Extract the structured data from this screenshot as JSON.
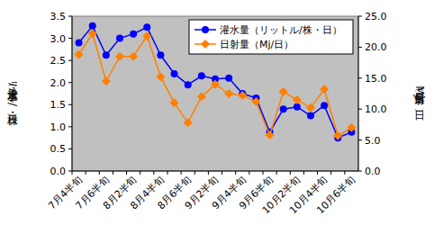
{
  "chart_data": {
    "type": "line",
    "y_label": "灌水量（ﾘｯﾄﾙ/株・日）",
    "y2_label": "日射量（Mj/日）",
    "categories": [
      "7月4半旬",
      null,
      "7月6半旬",
      null,
      "8月2半旬",
      null,
      "8月4半旬",
      null,
      "8月6半旬",
      null,
      "9月2半旬",
      null,
      "9月4半旬",
      null,
      "9月6半旬",
      null,
      "10月2半旬",
      null,
      "10月4半旬",
      null,
      "10月6半旬"
    ],
    "series": [
      {
        "name": "灌水量（リットル/株・日）",
        "color": "#0000ff",
        "marker": "circle",
        "line_style": "solid",
        "values": [
          2.9,
          3.28,
          2.62,
          3.0,
          3.1,
          3.25,
          2.62,
          2.2,
          1.95,
          2.15,
          2.08,
          2.1,
          1.75,
          1.65,
          0.88,
          1.4,
          1.45,
          1.25,
          1.48,
          0.75,
          0.88
        ]
      },
      {
        "name": "日射量（Mj/日）",
        "color": "#ff8000",
        "marker": "diamond",
        "line_style": "solid",
        "axis": "y2",
        "values": [
          18.8,
          22.2,
          14.5,
          18.5,
          18.5,
          21.8,
          15.2,
          11.0,
          7.8,
          12.0,
          14.0,
          12.5,
          12.2,
          11.2,
          5.8,
          12.8,
          11.5,
          10.2,
          13.2,
          5.7,
          7.0
        ]
      }
    ],
    "ylim": [
      0,
      3.5
    ],
    "yticks": [
      {
        "value": 0,
        "label": "0.0"
      },
      {
        "value": 0.5,
        "label": "0.5"
      },
      {
        "value": 1,
        "label": "1.0"
      },
      {
        "value": 1.5,
        "label": "1.5"
      },
      {
        "value": 2,
        "label": "2.0"
      },
      {
        "value": 2.5,
        "label": "2.5"
      },
      {
        "value": 3,
        "label": "3.0"
      },
      {
        "value": 3.5,
        "label": "3.5"
      }
    ],
    "y2lim": [
      0,
      25
    ],
    "y2ticks": [
      {
        "value": 0,
        "label": "0.0"
      },
      {
        "value": 5,
        "label": "5.0"
      },
      {
        "value": 10,
        "label": "10.0"
      },
      {
        "value": 15,
        "label": "15.0"
      },
      {
        "value": 20,
        "label": "20.0"
      },
      {
        "value": 25,
        "label": "25.0"
      }
    ],
    "grid": false,
    "legend": "upper right"
  }
}
